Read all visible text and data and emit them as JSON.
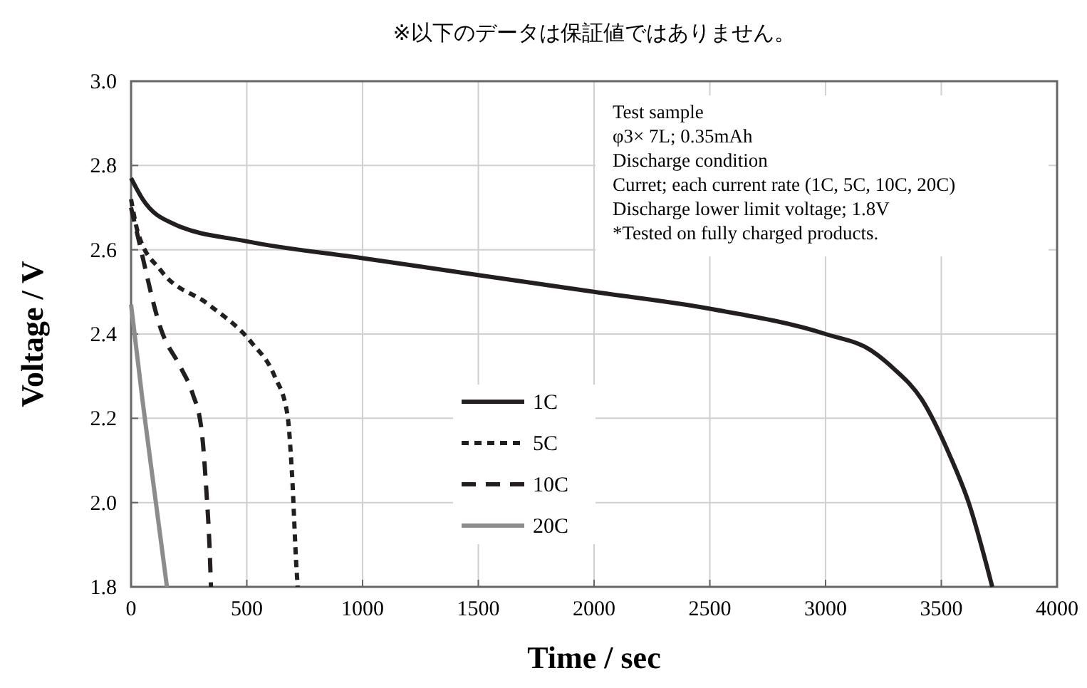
{
  "chart_data": {
    "type": "line",
    "title": "※以下のデータは保証値ではありません。",
    "xlabel": "Time / sec",
    "ylabel": "Voltage / V",
    "xlim": [
      0,
      4000
    ],
    "xticks": [
      0,
      500,
      1000,
      1500,
      2000,
      2500,
      3000,
      3500,
      4000
    ],
    "ylim": [
      1.8,
      3.0
    ],
    "yticks": [
      {
        "value": 1.8,
        "label": "1.8"
      },
      {
        "value": 2.0,
        "label": "2.0"
      },
      {
        "value": 2.2,
        "label": "2.2"
      },
      {
        "value": 2.4,
        "label": "2.4"
      },
      {
        "value": 2.6,
        "label": "2.6"
      },
      {
        "value": 2.8,
        "label": "2.8"
      },
      {
        "value": 3.0,
        "label": "3.0"
      }
    ],
    "grid": true,
    "legend": "bottom left",
    "marker": "none",
    "annotations": [
      "Test sample",
      "φ3× 7L; 0.35mAh",
      "Discharge condition",
      "Curret; each current rate (1C, 5C, 10C, 20C)",
      "Discharge lower limit  voltage; 1.8V",
      "*Tested on fully  charged products."
    ],
    "series": [
      {
        "name": "1C",
        "color": "#231f20",
        "line_style": "solid",
        "x": [
          0,
          50,
          190,
          500,
          1000,
          1500,
          2000,
          2500,
          3000,
          3200,
          3290,
          3415,
          3538,
          3618,
          3720
        ],
        "values": [
          2.77,
          2.72,
          2.66,
          2.62,
          2.58,
          2.54,
          2.5,
          2.46,
          2.4,
          2.36,
          2.32,
          2.245,
          2.11,
          2.0,
          1.8
        ]
      },
      {
        "name": "5C",
        "color": "#231f20",
        "line_style": "dotted",
        "x": [
          0,
          30,
          130,
          335,
          520,
          620,
          675,
          695,
          715,
          720
        ],
        "values": [
          2.72,
          2.64,
          2.55,
          2.47,
          2.38,
          2.3,
          2.21,
          2.07,
          1.84,
          1.8
        ]
      },
      {
        "name": "10C",
        "color": "#231f20",
        "line_style": "dashed",
        "x": [
          0,
          30,
          130,
          215,
          265,
          305,
          325,
          340,
          345
        ],
        "values": [
          2.7,
          2.63,
          2.41,
          2.32,
          2.26,
          2.17,
          2.03,
          1.88,
          1.8
        ]
      },
      {
        "name": "20C",
        "color": "#8c8c8c",
        "line_style": "solid",
        "x": [
          0,
          50,
          100,
          155
        ],
        "values": [
          2.47,
          2.24,
          2.03,
          1.8
        ]
      }
    ]
  }
}
